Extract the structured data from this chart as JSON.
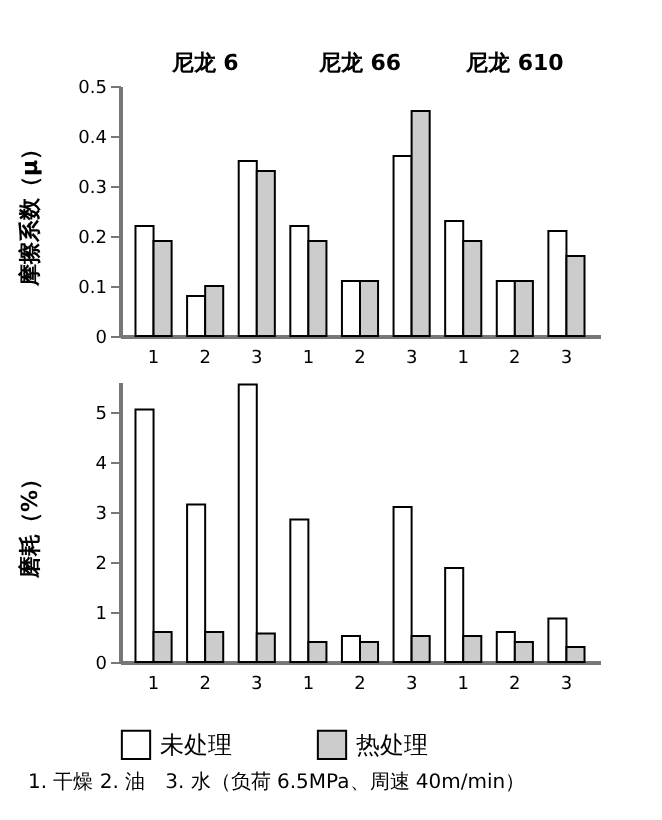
{
  "chart_data": [
    {
      "type": "bar",
      "ylabel": "摩擦系数（μ）",
      "categories": [
        "1",
        "2",
        "3",
        "1",
        "2",
        "3",
        "1",
        "2",
        "3"
      ],
      "series": [
        {
          "color": "#ffffff",
          "values": [
            0.22,
            0.08,
            0.35,
            0.22,
            0.11,
            0.36,
            0.23,
            0.11,
            0.21
          ]
        },
        {
          "color": "#cccccc",
          "values": [
            0.19,
            0.1,
            0.33,
            0.19,
            0.11,
            0.45,
            0.19,
            0.11,
            0.16
          ]
        }
      ],
      "ylim": [
        0,
        0.5
      ],
      "yticks": [
        0,
        0.1,
        0.2,
        0.3,
        0.4,
        0.5
      ],
      "annotations": [
        "尼龙 6",
        "尼龙 66",
        "尼龙 610"
      ]
    },
    {
      "type": "bar",
      "ylabel": "磨耗（%）",
      "categories": [
        "1",
        "2",
        "3",
        "1",
        "2",
        "3",
        "1",
        "2",
        "3"
      ],
      "series": [
        {
          "name": "未处理",
          "color": "#ffffff",
          "values": [
            5.05,
            3.15,
            5.55,
            2.85,
            0.52,
            3.1,
            1.88,
            0.6,
            0.87
          ]
        },
        {
          "name": "热处理",
          "color": "#cccccc",
          "values": [
            0.6,
            0.6,
            0.57,
            0.4,
            0.4,
            0.52,
            0.52,
            0.4,
            0.3
          ]
        }
      ],
      "ylim": [
        0,
        5.6
      ],
      "yticks": [
        0,
        1,
        2,
        3,
        4,
        5
      ],
      "legend": "bottom",
      "annotations": [
        "1. 干燥 2. 油　3. 水（负荷 6.5MPa、周速 40m/min）"
      ]
    }
  ]
}
